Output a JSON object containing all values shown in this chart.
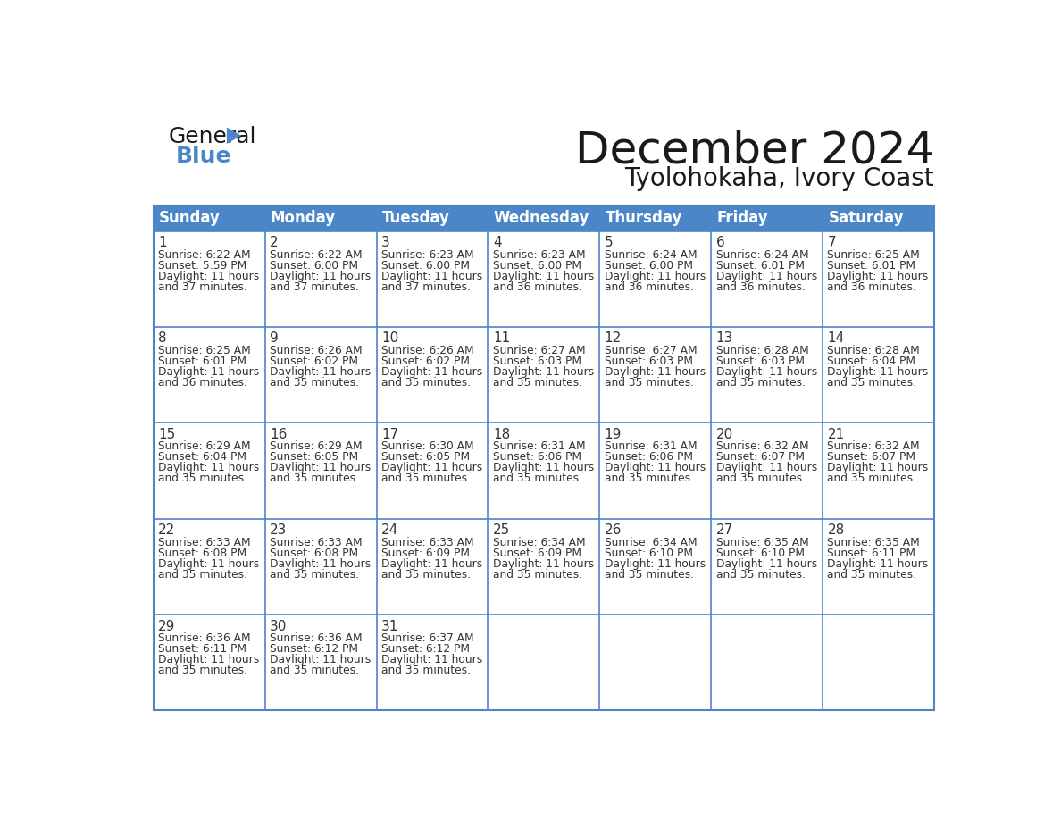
{
  "title": "December 2024",
  "subtitle": "Tyolohokaha, Ivory Coast",
  "header_color": "#4a86c8",
  "header_text_color": "#ffffff",
  "border_color": "#4a86c8",
  "day_num_color": "#333333",
  "text_color": "#333333",
  "days_of_week": [
    "Sunday",
    "Monday",
    "Tuesday",
    "Wednesday",
    "Thursday",
    "Friday",
    "Saturday"
  ],
  "calendar_data": [
    [
      {
        "day": 1,
        "sunrise": "6:22 AM",
        "sunset": "5:59 PM",
        "daylight_l1": "11 hours",
        "daylight_l2": "and 37 minutes."
      },
      {
        "day": 2,
        "sunrise": "6:22 AM",
        "sunset": "6:00 PM",
        "daylight_l1": "11 hours",
        "daylight_l2": "and 37 minutes."
      },
      {
        "day": 3,
        "sunrise": "6:23 AM",
        "sunset": "6:00 PM",
        "daylight_l1": "11 hours",
        "daylight_l2": "and 37 minutes."
      },
      {
        "day": 4,
        "sunrise": "6:23 AM",
        "sunset": "6:00 PM",
        "daylight_l1": "11 hours",
        "daylight_l2": "and 36 minutes."
      },
      {
        "day": 5,
        "sunrise": "6:24 AM",
        "sunset": "6:00 PM",
        "daylight_l1": "11 hours",
        "daylight_l2": "and 36 minutes."
      },
      {
        "day": 6,
        "sunrise": "6:24 AM",
        "sunset": "6:01 PM",
        "daylight_l1": "11 hours",
        "daylight_l2": "and 36 minutes."
      },
      {
        "day": 7,
        "sunrise": "6:25 AM",
        "sunset": "6:01 PM",
        "daylight_l1": "11 hours",
        "daylight_l2": "and 36 minutes."
      }
    ],
    [
      {
        "day": 8,
        "sunrise": "6:25 AM",
        "sunset": "6:01 PM",
        "daylight_l1": "11 hours",
        "daylight_l2": "and 36 minutes."
      },
      {
        "day": 9,
        "sunrise": "6:26 AM",
        "sunset": "6:02 PM",
        "daylight_l1": "11 hours",
        "daylight_l2": "and 35 minutes."
      },
      {
        "day": 10,
        "sunrise": "6:26 AM",
        "sunset": "6:02 PM",
        "daylight_l1": "11 hours",
        "daylight_l2": "and 35 minutes."
      },
      {
        "day": 11,
        "sunrise": "6:27 AM",
        "sunset": "6:03 PM",
        "daylight_l1": "11 hours",
        "daylight_l2": "and 35 minutes."
      },
      {
        "day": 12,
        "sunrise": "6:27 AM",
        "sunset": "6:03 PM",
        "daylight_l1": "11 hours",
        "daylight_l2": "and 35 minutes."
      },
      {
        "day": 13,
        "sunrise": "6:28 AM",
        "sunset": "6:03 PM",
        "daylight_l1": "11 hours",
        "daylight_l2": "and 35 minutes."
      },
      {
        "day": 14,
        "sunrise": "6:28 AM",
        "sunset": "6:04 PM",
        "daylight_l1": "11 hours",
        "daylight_l2": "and 35 minutes."
      }
    ],
    [
      {
        "day": 15,
        "sunrise": "6:29 AM",
        "sunset": "6:04 PM",
        "daylight_l1": "11 hours",
        "daylight_l2": "and 35 minutes."
      },
      {
        "day": 16,
        "sunrise": "6:29 AM",
        "sunset": "6:05 PM",
        "daylight_l1": "11 hours",
        "daylight_l2": "and 35 minutes."
      },
      {
        "day": 17,
        "sunrise": "6:30 AM",
        "sunset": "6:05 PM",
        "daylight_l1": "11 hours",
        "daylight_l2": "and 35 minutes."
      },
      {
        "day": 18,
        "sunrise": "6:31 AM",
        "sunset": "6:06 PM",
        "daylight_l1": "11 hours",
        "daylight_l2": "and 35 minutes."
      },
      {
        "day": 19,
        "sunrise": "6:31 AM",
        "sunset": "6:06 PM",
        "daylight_l1": "11 hours",
        "daylight_l2": "and 35 minutes."
      },
      {
        "day": 20,
        "sunrise": "6:32 AM",
        "sunset": "6:07 PM",
        "daylight_l1": "11 hours",
        "daylight_l2": "and 35 minutes."
      },
      {
        "day": 21,
        "sunrise": "6:32 AM",
        "sunset": "6:07 PM",
        "daylight_l1": "11 hours",
        "daylight_l2": "and 35 minutes."
      }
    ],
    [
      {
        "day": 22,
        "sunrise": "6:33 AM",
        "sunset": "6:08 PM",
        "daylight_l1": "11 hours",
        "daylight_l2": "and 35 minutes."
      },
      {
        "day": 23,
        "sunrise": "6:33 AM",
        "sunset": "6:08 PM",
        "daylight_l1": "11 hours",
        "daylight_l2": "and 35 minutes."
      },
      {
        "day": 24,
        "sunrise": "6:33 AM",
        "sunset": "6:09 PM",
        "daylight_l1": "11 hours",
        "daylight_l2": "and 35 minutes."
      },
      {
        "day": 25,
        "sunrise": "6:34 AM",
        "sunset": "6:09 PM",
        "daylight_l1": "11 hours",
        "daylight_l2": "and 35 minutes."
      },
      {
        "day": 26,
        "sunrise": "6:34 AM",
        "sunset": "6:10 PM",
        "daylight_l1": "11 hours",
        "daylight_l2": "and 35 minutes."
      },
      {
        "day": 27,
        "sunrise": "6:35 AM",
        "sunset": "6:10 PM",
        "daylight_l1": "11 hours",
        "daylight_l2": "and 35 minutes."
      },
      {
        "day": 28,
        "sunrise": "6:35 AM",
        "sunset": "6:11 PM",
        "daylight_l1": "11 hours",
        "daylight_l2": "and 35 minutes."
      }
    ],
    [
      {
        "day": 29,
        "sunrise": "6:36 AM",
        "sunset": "6:11 PM",
        "daylight_l1": "11 hours",
        "daylight_l2": "and 35 minutes."
      },
      {
        "day": 30,
        "sunrise": "6:36 AM",
        "sunset": "6:12 PM",
        "daylight_l1": "11 hours",
        "daylight_l2": "and 35 minutes."
      },
      {
        "day": 31,
        "sunrise": "6:37 AM",
        "sunset": "6:12 PM",
        "daylight_l1": "11 hours",
        "daylight_l2": "and 35 minutes."
      },
      null,
      null,
      null,
      null
    ]
  ],
  "logo_text_general": "General",
  "logo_text_blue": "Blue",
  "logo_triangle_color": "#4a86c8"
}
